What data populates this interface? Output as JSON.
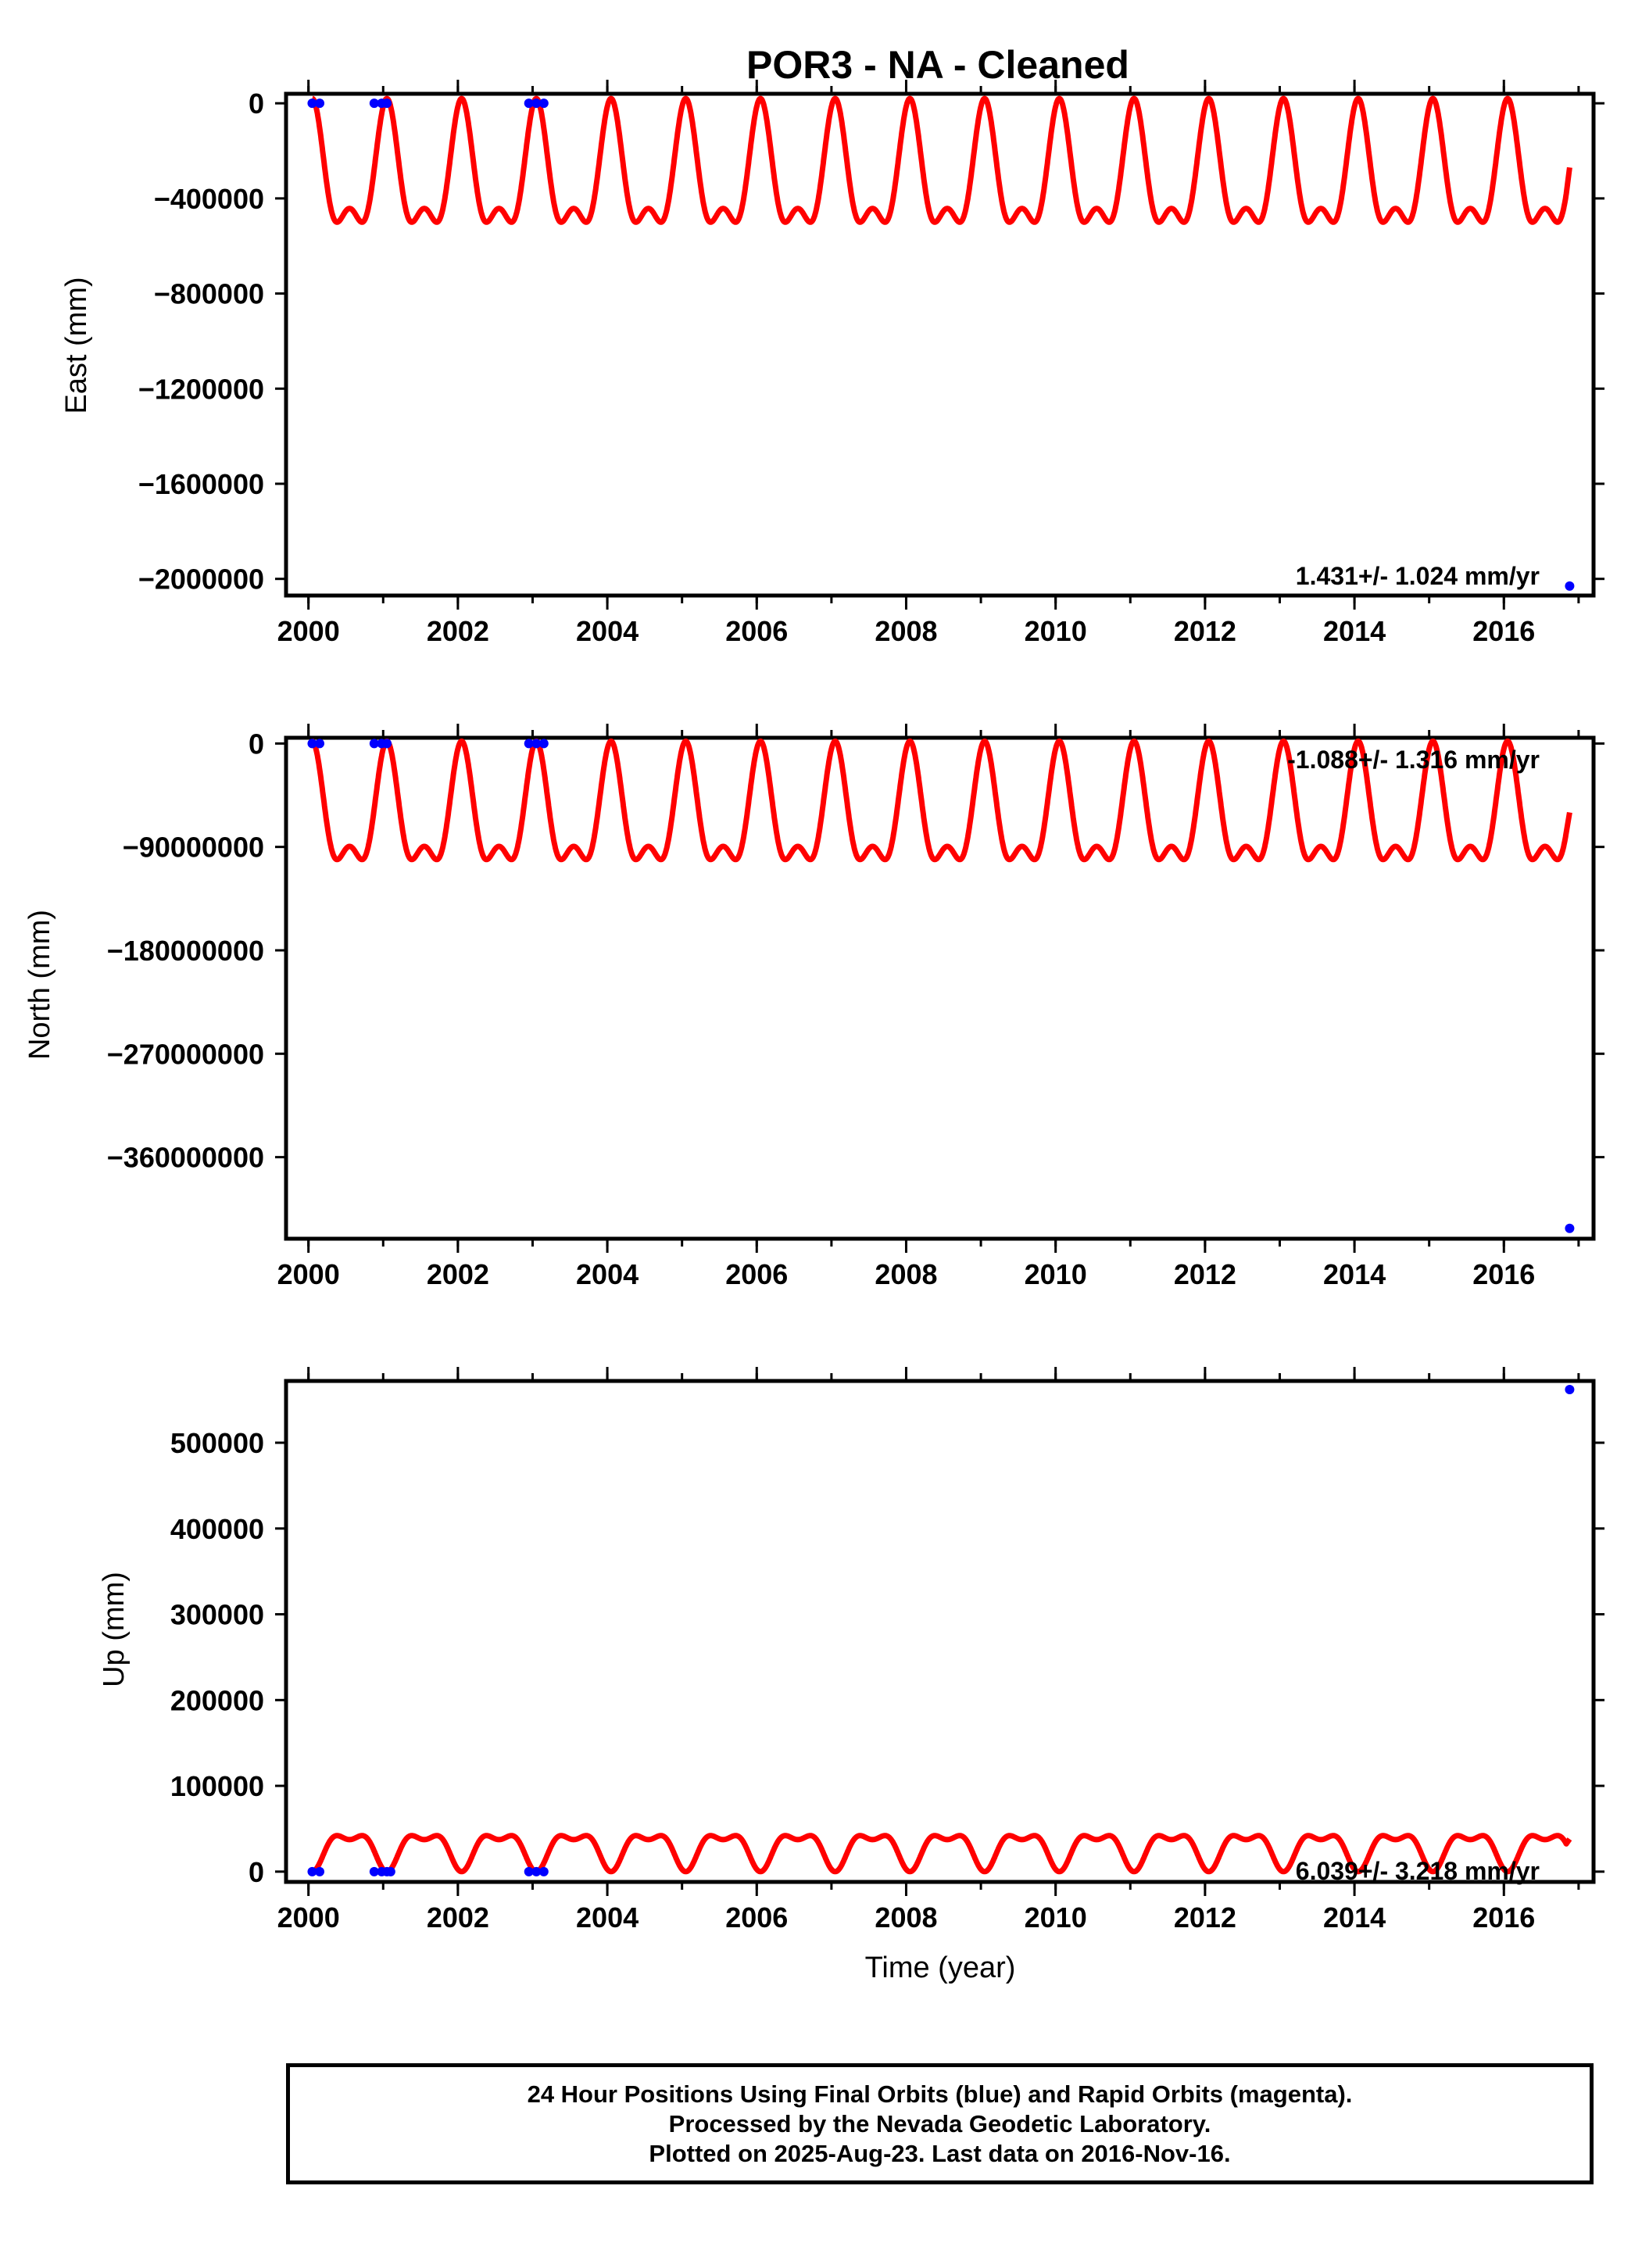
{
  "title": "POR3  - NA - Cleaned",
  "colors": {
    "model": "#ff0000",
    "final_orbits": "#0000ff",
    "rapid_orbits": "#ff00ff",
    "frame": "#000000"
  },
  "footer": {
    "line1": "24 Hour Positions Using Final Orbits (blue) and Rapid Orbits (magenta).",
    "line2": "Processed by the Nevada Geodetic Laboratory.",
    "line3": "Plotted on 2025-Aug-23. Last data on 2016-Nov-16."
  },
  "chart_data": [
    {
      "type": "scatter",
      "panel": "east",
      "ylabel": "East (mm)",
      "xlabel": "",
      "rate_label": "1.431+/- 1.024 mm/yr",
      "rate_label_position": "bottom-right",
      "xlim": [
        1999.7,
        2017.2
      ],
      "ylim": [
        -2070000,
        40000
      ],
      "xticks": [
        2000,
        2002,
        2004,
        2006,
        2008,
        2010,
        2012,
        2014,
        2016
      ],
      "yticks": [
        0,
        -400000,
        -800000,
        -1200000,
        -1600000,
        -2000000
      ],
      "ytick_labels": [
        "0",
        "−400000",
        "−800000",
        "−1200000",
        "−1600000",
        "−2000000"
      ],
      "model": {
        "start": 2000.05,
        "end": 2016.88,
        "min": -500000,
        "max": 20000,
        "period": 1.0,
        "ending_value": -270000
      },
      "final_orbits": [
        [
          2000.05,
          0
        ],
        [
          2000.15,
          0
        ],
        [
          2000.88,
          0
        ],
        [
          2000.98,
          0
        ],
        [
          2001.05,
          0
        ],
        [
          2002.95,
          0
        ],
        [
          2003.05,
          0
        ],
        [
          2003.15,
          0
        ],
        [
          2016.88,
          -2030000
        ]
      ]
    },
    {
      "type": "scatter",
      "panel": "north",
      "ylabel": "North (mm)",
      "xlabel": "",
      "rate_label": "-1.088+/- 1.316 mm/yr",
      "rate_label_position": "top-right",
      "xlim": [
        1999.7,
        2017.2
      ],
      "ylim": [
        -431000000,
        5000000
      ],
      "xticks": [
        2000,
        2002,
        2004,
        2006,
        2008,
        2010,
        2012,
        2014,
        2016
      ],
      "yticks": [
        0,
        -90000000,
        -180000000,
        -270000000,
        -360000000
      ],
      "ytick_labels": [
        "0",
        "−90000000",
        "−180000000",
        "−270000000",
        "−360000000"
      ],
      "model": {
        "start": 2000.05,
        "end": 2016.88,
        "min": -101000000,
        "max": 2000000,
        "period": 1.0,
        "ending_value": -60000000
      },
      "final_orbits": [
        [
          2000.05,
          0
        ],
        [
          2000.15,
          0
        ],
        [
          2000.88,
          0
        ],
        [
          2000.98,
          0
        ],
        [
          2001.05,
          0
        ],
        [
          2002.95,
          0
        ],
        [
          2003.05,
          0
        ],
        [
          2003.15,
          0
        ],
        [
          2016.88,
          -422000000
        ]
      ]
    },
    {
      "type": "scatter",
      "panel": "up",
      "ylabel": "Up (mm)",
      "xlabel": "Time (year)",
      "rate_label": "6.039+/- 3.218 mm/yr",
      "rate_label_position": "bottom-right",
      "xlim": [
        1999.7,
        2017.2
      ],
      "ylim": [
        -12000,
        572000
      ],
      "xticks": [
        2000,
        2002,
        2004,
        2006,
        2008,
        2010,
        2012,
        2014,
        2016
      ],
      "yticks": [
        0,
        100000,
        200000,
        300000,
        400000,
        500000
      ],
      "ytick_labels": [
        "0",
        "100000",
        "200000",
        "300000",
        "400000",
        "500000"
      ],
      "model": {
        "start": 2000.05,
        "end": 2016.88,
        "min": 0,
        "max": 42000,
        "period": 1.0,
        "ending_value": 38000
      },
      "final_orbits": [
        [
          2000.05,
          0
        ],
        [
          2000.15,
          0
        ],
        [
          2000.88,
          0
        ],
        [
          2000.98,
          0
        ],
        [
          2001.05,
          0
        ],
        [
          2001.1,
          0
        ],
        [
          2002.95,
          0
        ],
        [
          2003.05,
          0
        ],
        [
          2003.15,
          0
        ],
        [
          2016.88,
          562000
        ]
      ]
    }
  ]
}
